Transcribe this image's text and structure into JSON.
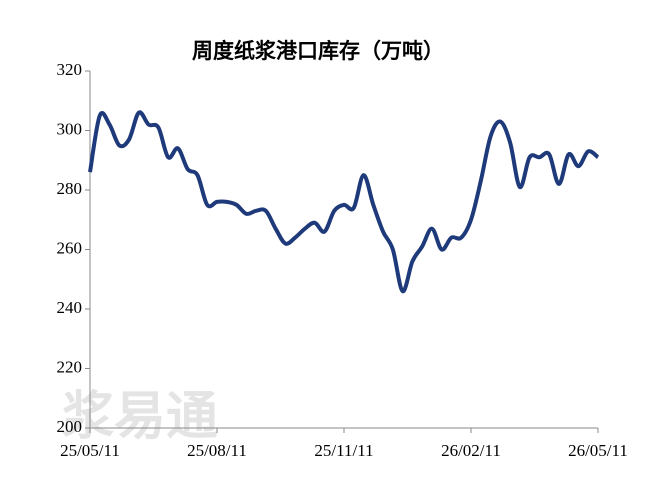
{
  "chart_data": {
    "type": "line",
    "title": "周度纸浆港口库存（万吨）",
    "watermark": "浆易通",
    "categories": [
      "25/05/11",
      null,
      null,
      null,
      null,
      null,
      null,
      null,
      null,
      null,
      null,
      null,
      null,
      "25/08/11",
      null,
      null,
      null,
      null,
      null,
      null,
      null,
      null,
      null,
      null,
      null,
      null,
      "25/11/11",
      null,
      null,
      null,
      null,
      null,
      null,
      null,
      null,
      null,
      null,
      null,
      null,
      "26/02/11",
      null,
      null,
      null,
      null,
      null,
      null,
      null,
      null,
      null,
      null,
      null,
      null,
      "26/05/11"
    ],
    "series": [
      {
        "name": "周度纸浆港口库存",
        "color": "#1f3a7a",
        "values": [
          286,
          305,
          302,
          295,
          297,
          306,
          302,
          301,
          291,
          294,
          287,
          285,
          275,
          276,
          276,
          275,
          272,
          273,
          273,
          267,
          262,
          264,
          267,
          269,
          266,
          273,
          275,
          274,
          285,
          275,
          266,
          260,
          246,
          256,
          261,
          267,
          260,
          264,
          264,
          270,
          283,
          298,
          303,
          296,
          281,
          291,
          291,
          292,
          282,
          292,
          288,
          293,
          291
        ]
      }
    ],
    "ylim": [
      200,
      320
    ],
    "yticks": [
      200,
      220,
      240,
      260,
      280,
      300,
      320
    ],
    "grid": false
  }
}
